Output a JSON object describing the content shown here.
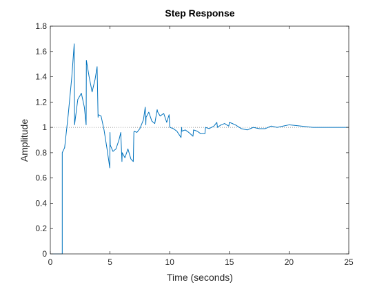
{
  "chart_data": {
    "type": "line",
    "title": "Step Response",
    "xlabel": "Time (seconds)",
    "ylabel": "Amplitude",
    "xlim": [
      0,
      25
    ],
    "ylim": [
      0,
      1.8
    ],
    "xticks": [
      0,
      5,
      10,
      15,
      20,
      25
    ],
    "yticks": [
      0,
      0.2,
      0.4,
      0.6,
      0.8,
      1,
      1.2,
      1.4,
      1.6,
      1.8
    ],
    "xtick_labels": [
      "0",
      "5",
      "10",
      "15",
      "20",
      "25"
    ],
    "ytick_labels": [
      "0",
      "0.2",
      "0.4",
      "0.6",
      "0.8",
      "1",
      "1.2",
      "1.4",
      "1.6",
      "1.8"
    ],
    "grid": false,
    "reference_line": {
      "y": 1,
      "style": "dotted",
      "color": "#7f7f7f"
    },
    "series": [
      {
        "color": "#0072bd",
        "x": [
          0,
          1.0,
          1.0,
          1.2,
          1.5,
          1.8,
          2.0,
          2.03,
          2.3,
          2.6,
          2.85,
          3.0,
          3.02,
          3.25,
          3.5,
          3.75,
          3.92,
          4.0,
          4.02,
          4.25,
          4.5,
          4.75,
          4.98,
          5.0,
          5.02,
          5.25,
          5.5,
          5.75,
          5.9,
          6.0,
          6.02,
          6.25,
          6.5,
          6.75,
          6.95,
          7.0,
          7.02,
          7.25,
          7.5,
          7.8,
          7.95,
          8.0,
          8.02,
          8.25,
          8.5,
          8.75,
          8.95,
          9.0,
          9.2,
          9.5,
          9.75,
          9.95,
          10.0,
          10.02,
          10.3,
          10.6,
          10.95,
          11.0,
          11.02,
          11.3,
          11.6,
          11.95,
          12.0,
          12.3,
          12.6,
          12.95,
          13.0,
          13.3,
          13.7,
          13.95,
          14.0,
          14.3,
          14.6,
          14.95,
          15.0,
          15.5,
          16.0,
          16.5,
          17.0,
          17.5,
          18.0,
          18.5,
          19.0,
          19.5,
          20.0,
          21.0,
          22.0,
          23.0,
          24.0,
          25.0
        ],
        "y": [
          0,
          0,
          0.8,
          0.84,
          1.1,
          1.4,
          1.66,
          1.02,
          1.22,
          1.27,
          1.16,
          1.02,
          1.53,
          1.4,
          1.28,
          1.38,
          1.48,
          1.08,
          1.1,
          1.09,
          0.98,
          0.83,
          0.68,
          0.96,
          0.86,
          0.81,
          0.83,
          0.9,
          0.96,
          0.73,
          0.8,
          0.76,
          0.83,
          0.75,
          0.73,
          0.96,
          0.97,
          0.96,
          0.99,
          1.06,
          1.16,
          1.02,
          1.08,
          1.12,
          1.05,
          1.03,
          1.14,
          1.12,
          1.09,
          1.11,
          1.04,
          1.1,
          1.01,
          1.0,
          0.99,
          0.97,
          0.92,
          1.0,
          0.97,
          0.98,
          0.96,
          0.93,
          0.98,
          0.97,
          0.95,
          0.95,
          1.0,
          0.99,
          1.01,
          1.04,
          1.0,
          1.02,
          1.03,
          1.01,
          1.04,
          1.02,
          0.99,
          0.98,
          1.0,
          0.99,
          0.99,
          1.01,
          1.0,
          1.01,
          1.02,
          1.01,
          1.0,
          1.0,
          1.0,
          1.0
        ]
      }
    ]
  }
}
